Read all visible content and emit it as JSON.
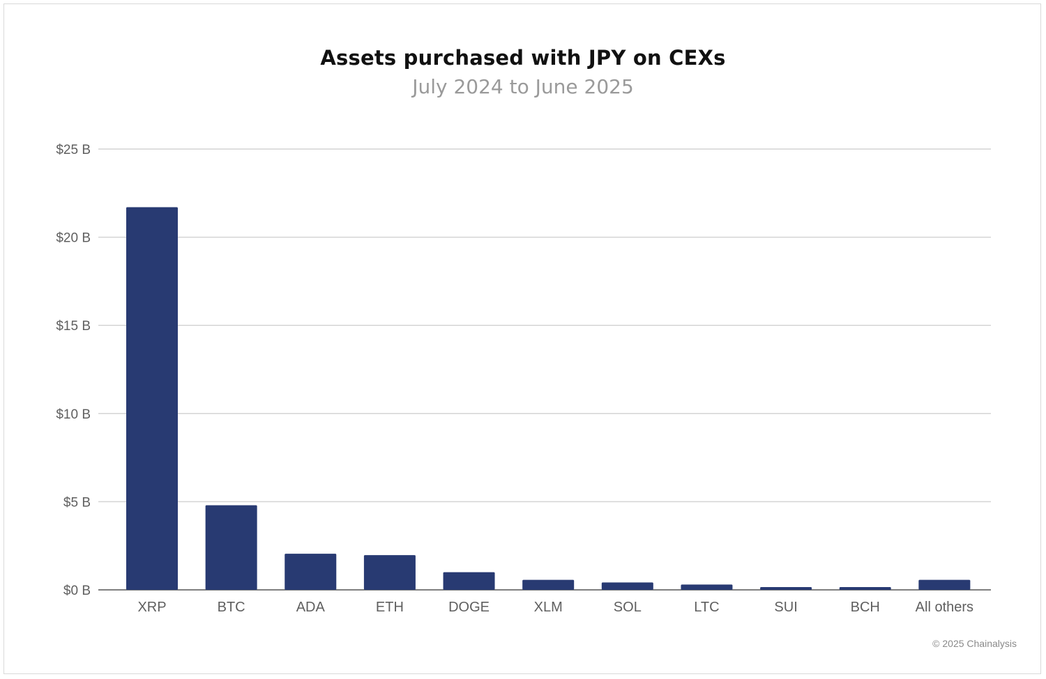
{
  "chart_data": {
    "type": "bar",
    "title": "Assets purchased with JPY on CEXs",
    "subtitle": "July 2024 to June 2025",
    "categories": [
      "XRP",
      "BTC",
      "ADA",
      "ETH",
      "DOGE",
      "XLM",
      "SOL",
      "LTC",
      "SUI",
      "BCH",
      "All others"
    ],
    "values": [
      21.7,
      4.8,
      2.05,
      1.97,
      1.0,
      0.57,
      0.42,
      0.3,
      0.16,
      0.16,
      0.57
    ],
    "value_unit": "billion USD",
    "ylim": [
      0,
      25
    ],
    "yticks": [
      0,
      5,
      10,
      15,
      20,
      25
    ],
    "ytick_labels": [
      "$0 B",
      "$5 B",
      "$10 B",
      "$15 B",
      "$20 B",
      "$25 B"
    ],
    "xlabel": "",
    "ylabel": "",
    "grid": true,
    "bar_color": "#283a72"
  },
  "credit": "© 2025 Chainalysis"
}
